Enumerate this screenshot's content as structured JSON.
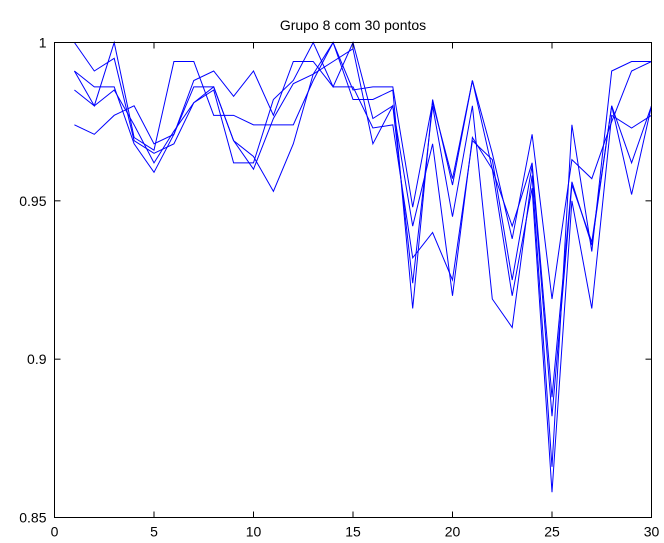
{
  "chart_data": {
    "type": "line",
    "title": "Grupo 8 com 30 pontos",
    "xlabel": "",
    "ylabel": "",
    "xlim": [
      0,
      30
    ],
    "ylim": [
      0.85,
      1.0
    ],
    "grid": false,
    "legend": "none",
    "line_color": "#0000ff",
    "x_ticks": [
      0,
      5,
      10,
      15,
      20,
      25,
      30
    ],
    "x_tick_labels": [
      "0",
      "5",
      "10",
      "15",
      "20",
      "25",
      "30"
    ],
    "y_ticks": [
      0.85,
      0.9,
      0.95,
      1.0
    ],
    "y_tick_labels": [
      "0.85",
      "0.9",
      "0.95",
      "1"
    ],
    "x": [
      1,
      2,
      3,
      4,
      5,
      6,
      7,
      8,
      9,
      10,
      11,
      12,
      13,
      14,
      15,
      16,
      17,
      18,
      19,
      20,
      21,
      22,
      23,
      24,
      25,
      26,
      27,
      28,
      29,
      30
    ],
    "series": [
      {
        "values": [
          1.0,
          0.991,
          0.995,
          0.969,
          0.965,
          0.968,
          0.981,
          0.985,
          0.962,
          0.962,
          0.982,
          0.988,
          1.0,
          0.986,
          1.0,
          0.976,
          0.98,
          0.924,
          0.98,
          0.945,
          0.98,
          0.919,
          0.91,
          0.958,
          0.866,
          0.974,
          0.934,
          0.991,
          0.994,
          0.994
        ]
      },
      {
        "values": [
          0.991,
          0.98,
          1.0,
          0.97,
          0.966,
          0.994,
          0.994,
          0.977,
          0.977,
          0.974,
          0.974,
          0.974,
          0.988,
          1.0,
          0.982,
          0.982,
          0.985,
          0.916,
          0.982,
          0.955,
          0.988,
          0.965,
          0.938,
          0.971,
          0.919,
          0.963,
          0.957,
          0.975,
          0.991,
          0.994
        ]
      },
      {
        "values": [
          0.985,
          0.98,
          0.985,
          0.974,
          0.962,
          0.972,
          0.981,
          0.986,
          0.969,
          0.96,
          0.976,
          0.987,
          0.99,
          0.994,
          0.998,
          0.968,
          0.98,
          0.942,
          0.968,
          0.92,
          0.97,
          0.96,
          0.942,
          0.962,
          0.888,
          0.956,
          0.936,
          0.98,
          0.952,
          0.98
        ]
      },
      {
        "values": [
          0.974,
          0.971,
          0.977,
          0.98,
          0.968,
          0.971,
          0.988,
          0.991,
          0.983,
          0.991,
          0.977,
          0.994,
          0.994,
          0.986,
          0.986,
          0.973,
          0.974,
          0.932,
          0.94,
          0.925,
          0.969,
          0.963,
          0.925,
          0.961,
          0.882,
          0.955,
          0.937,
          0.98,
          0.962,
          0.98
        ]
      },
      {
        "values": [
          0.991,
          0.986,
          0.986,
          0.968,
          0.959,
          0.971,
          0.986,
          0.986,
          0.969,
          0.964,
          0.953,
          0.968,
          0.99,
          1.0,
          0.985,
          0.986,
          0.986,
          0.948,
          0.981,
          0.957,
          0.988,
          0.96,
          0.92,
          0.954,
          0.858,
          0.95,
          0.916,
          0.977,
          0.973,
          0.977
        ]
      }
    ]
  }
}
